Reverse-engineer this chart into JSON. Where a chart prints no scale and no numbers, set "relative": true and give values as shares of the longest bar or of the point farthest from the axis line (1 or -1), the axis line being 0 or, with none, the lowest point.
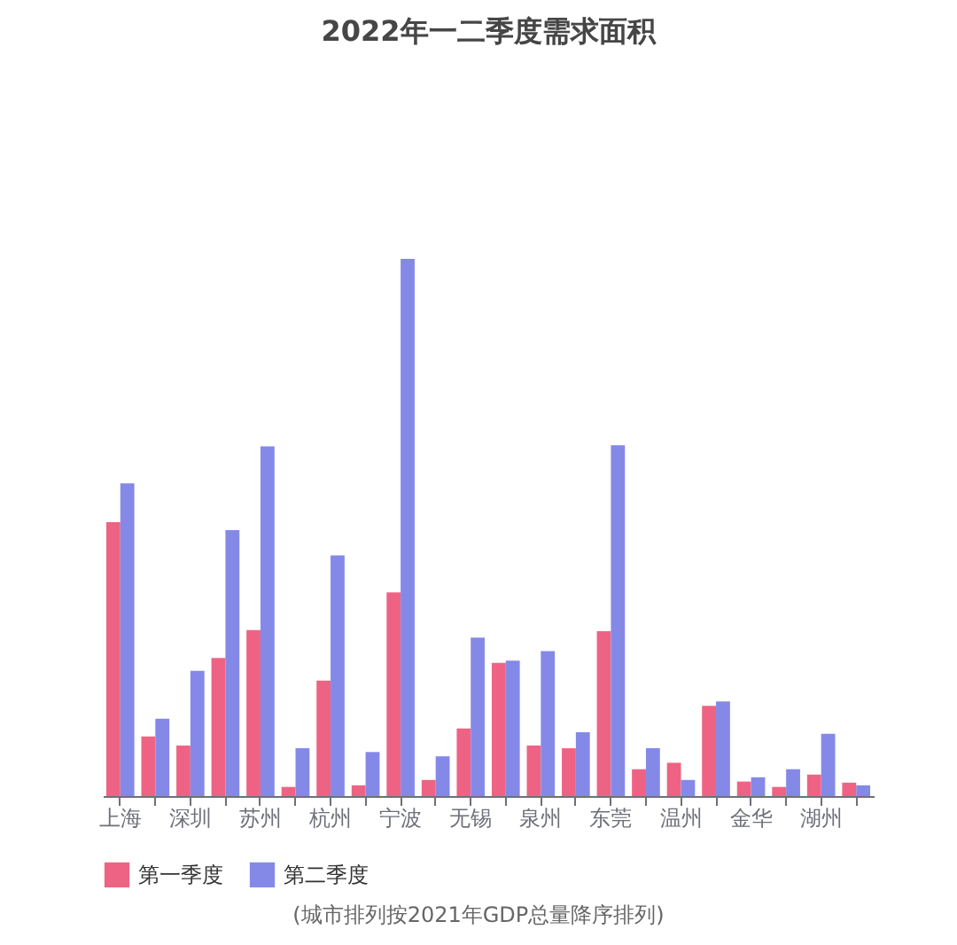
{
  "chart_data": {
    "type": "bar",
    "title": "2022年一二季度需求面积",
    "categories": [
      "上海",
      null,
      "深圳",
      null,
      "苏州",
      null,
      "杭州",
      null,
      "宁波",
      null,
      "无锡",
      null,
      "泉州",
      null,
      "东莞",
      null,
      "温州",
      null,
      "金华",
      null,
      "湖州",
      null
    ],
    "series": [
      {
        "name": "第一季度",
        "color": "#ee6383",
        "values": [
          0.51,
          0.111,
          0.094,
          0.257,
          0.309,
          0.017,
          0.215,
          0.02,
          0.379,
          0.03,
          0.126,
          0.248,
          0.094,
          0.089,
          0.307,
          0.05,
          0.062,
          0.168,
          0.027,
          0.017,
          0.04,
          0.025
        ]
      },
      {
        "name": "第二季度",
        "color": "#8489e8",
        "values": [
          0.582,
          0.144,
          0.233,
          0.495,
          0.651,
          0.089,
          0.448,
          0.082,
          1,
          0.074,
          0.295,
          0.252,
          0.27,
          0.119,
          0.653,
          0.089,
          0.03,
          0.176,
          0.035,
          0.05,
          0.116,
          0.02
        ]
      }
    ],
    "relative": true,
    "legend": "bottom",
    "annotations": [
      "(城市排列按2021年GDP总量降序排列)"
    ]
  }
}
